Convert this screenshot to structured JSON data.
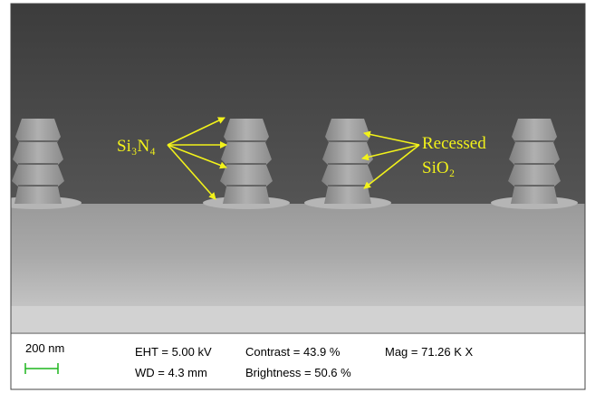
{
  "annotations": {
    "left": "Si₃N₄",
    "right": [
      "Recessed",
      "SiO₂"
    ]
  },
  "info_bar": {
    "scale_bar": "200 nm",
    "eht": "EHT = 5.00 kV",
    "wd": "WD = 4.3 mm",
    "contrast": "Contrast = 43.9 %",
    "brightness": "Brightness = 50.6 %",
    "mag": "Mag = 71.26 K X"
  }
}
